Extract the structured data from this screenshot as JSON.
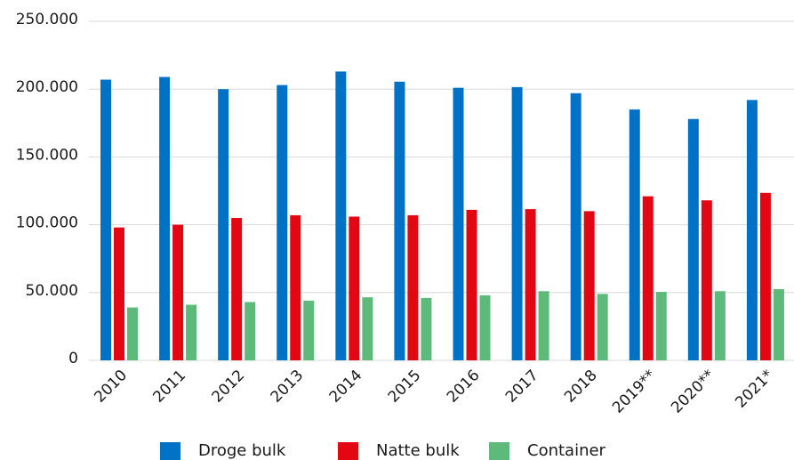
{
  "chart_data": {
    "type": "bar",
    "categories": [
      "2010",
      "2011",
      "2012",
      "2013",
      "2014",
      "2015",
      "2016",
      "2017",
      "2018",
      "2019**",
      "2020**",
      "2021*"
    ],
    "series": [
      {
        "name": "Droge bulk",
        "color": "#0072c6",
        "values": [
          207000,
          209000,
          200000,
          203000,
          213000,
          205500,
          201000,
          201500,
          197000,
          185000,
          178000,
          192000
        ]
      },
      {
        "name": "Natte bulk",
        "color": "#e30613",
        "values": [
          98000,
          100000,
          105000,
          107000,
          106000,
          107000,
          111000,
          111500,
          110000,
          121000,
          118000,
          123500
        ]
      },
      {
        "name": "Container",
        "color": "#5dba7a",
        "values": [
          39000,
          41000,
          43000,
          44000,
          46500,
          46000,
          48000,
          51000,
          49000,
          50500,
          51000,
          52500
        ]
      }
    ],
    "ylim": [
      0,
      250000
    ],
    "yticks": [
      0,
      {
        "value": 50000,
        "label": "50.000"
      },
      {
        "value": 100000,
        "label": "100.000"
      },
      {
        "value": 150000,
        "label": "150.000"
      },
      {
        "value": 200000,
        "label": "200.000"
      },
      {
        "value": 250000,
        "label": "250.000"
      }
    ],
    "grid": true,
    "legend": "bottom"
  }
}
